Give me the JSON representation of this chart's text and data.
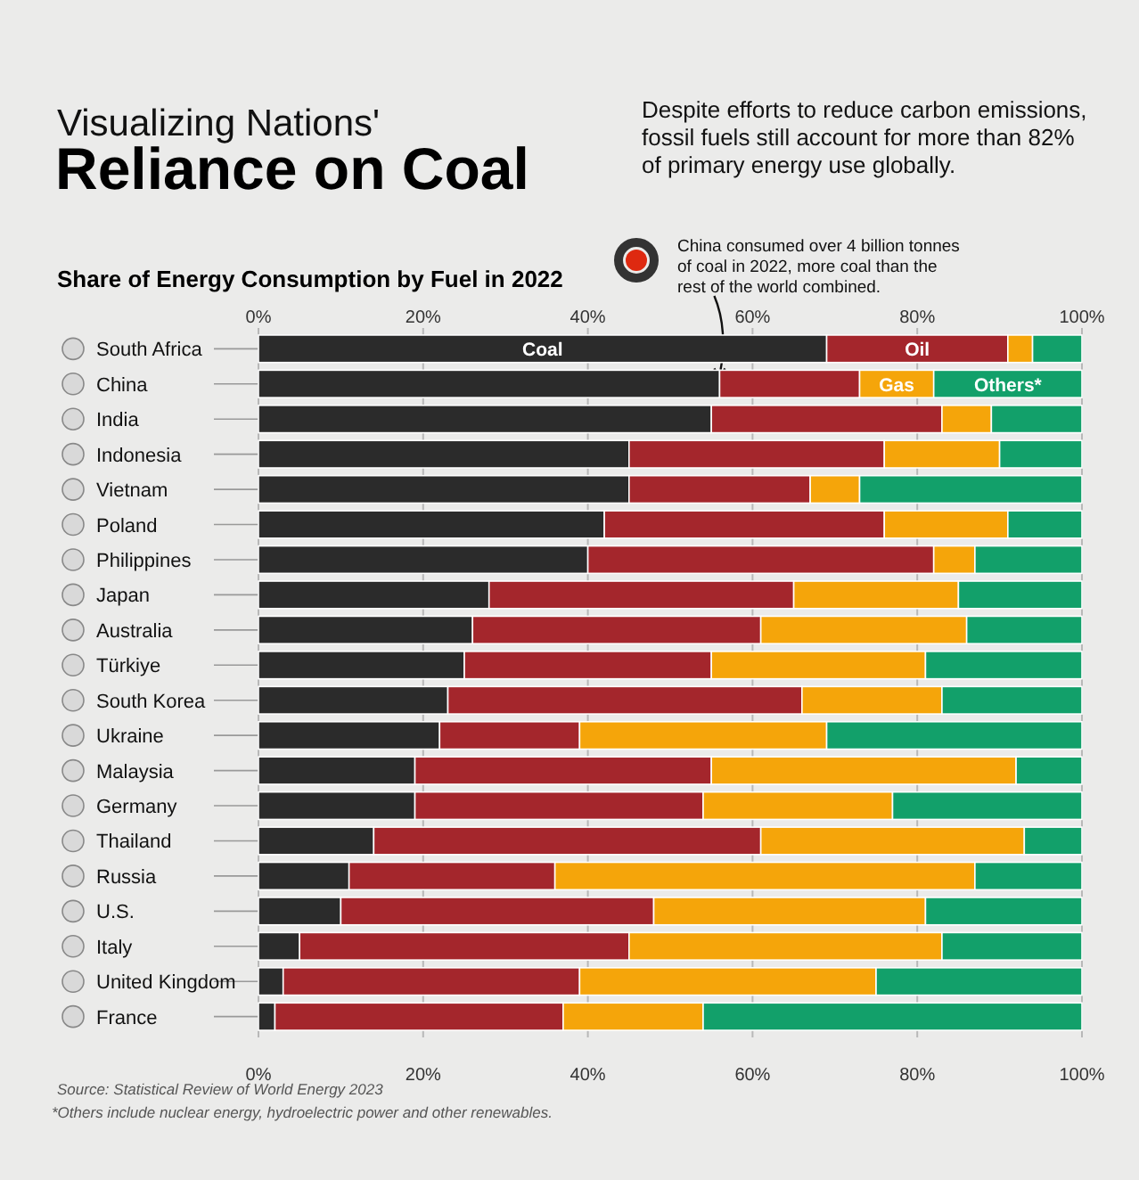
{
  "chart_data": {
    "type": "bar",
    "orientation": "horizontal",
    "stacked": true,
    "title": "Reliance on Coal",
    "subtitle": "Share of Energy Consumption by Fuel in 2022",
    "annotations": [
      "Visualizing Nations'",
      "Despite efforts to reduce carbon emissions, fossil fuels still account for more than 82% of primary energy use globally.",
      {
        "text": "China consumed over 4 billion tonnes of coal in 2022, more coal than the rest of the world combined.",
        "x": 56,
        "y": "China"
      },
      "Source: Statistical Review of World Energy 2023",
      "*Others include nuclear energy, hydroelectric power and other renewables."
    ],
    "categories": [
      "South Africa",
      "China",
      "India",
      "Indonesia",
      "Vietnam",
      "Poland",
      "Philippines",
      "Japan",
      "Australia",
      "Türkiye",
      "South Korea",
      "Ukraine",
      "Malaysia",
      "Germany",
      "Thailand",
      "Russia",
      "U.S.",
      "Italy",
      "United Kingdom",
      "France"
    ],
    "series": [
      {
        "name": "Coal",
        "color": "#2b2b2b",
        "values": [
          69,
          56,
          55,
          45,
          45,
          42,
          40,
          28,
          26,
          25,
          23,
          22,
          19,
          19,
          14,
          11,
          10,
          5,
          3,
          2
        ]
      },
      {
        "name": "Oil",
        "color": "#a4262c",
        "values": [
          22,
          17,
          28,
          31,
          22,
          34,
          42,
          37,
          35,
          30,
          43,
          17,
          36,
          35,
          47,
          25,
          38,
          40,
          36,
          35
        ]
      },
      {
        "name": "Gas",
        "color": "#f5a50a",
        "values": [
          3,
          9,
          6,
          14,
          6,
          15,
          5,
          20,
          25,
          26,
          17,
          30,
          37,
          23,
          32,
          51,
          33,
          38,
          36,
          17
        ]
      },
      {
        "name": "Others*",
        "color": "#12a06a",
        "values": [
          6,
          18,
          11,
          10,
          27,
          9,
          13,
          15,
          14,
          19,
          17,
          31,
          8,
          23,
          7,
          13,
          19,
          17,
          25,
          46
        ]
      }
    ],
    "xlim": [
      0,
      100
    ],
    "xticks": [
      {
        "value": 0,
        "label": "0%"
      },
      {
        "value": 20,
        "label": "20%"
      },
      {
        "value": 40,
        "label": "40%"
      },
      {
        "value": 60,
        "label": "60%"
      },
      {
        "value": 80,
        "label": "80%"
      },
      {
        "value": 100,
        "label": "100%"
      }
    ],
    "x2lim": [
      0,
      100
    ],
    "x2ticks": [
      {
        "value": 0,
        "label": "0%"
      },
      {
        "value": 20,
        "label": "20%"
      },
      {
        "value": 40,
        "label": "40%"
      },
      {
        "value": 60,
        "label": "60%"
      },
      {
        "value": 80,
        "label": "80%"
      },
      {
        "value": 100,
        "label": "100%"
      }
    ],
    "grid": "x",
    "legend": false
  }
}
